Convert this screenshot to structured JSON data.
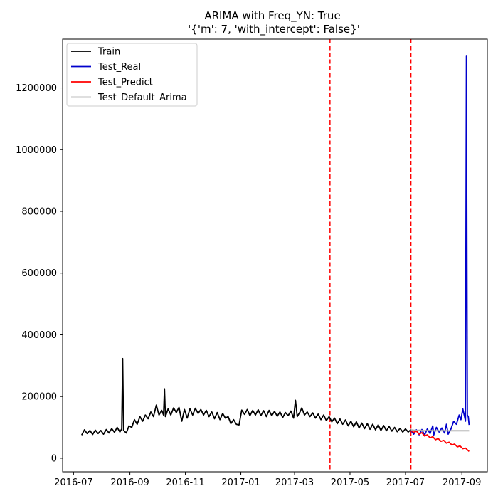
{
  "chart_data": {
    "type": "line",
    "title": "ARIMA with Freq_YN: True",
    "subtitle": "'{'m': 7, 'with_intercept': False}'",
    "xlabel": "",
    "ylabel": "",
    "xlim": [
      "2016-06-19",
      "2017-09-29"
    ],
    "ylim": [
      -44000,
      1358000
    ],
    "x_ticks": [
      "2016-07",
      "2016-09",
      "2016-11",
      "2017-01",
      "2017-03",
      "2017-05",
      "2017-07",
      "2017-09"
    ],
    "y_ticks": [
      0,
      200000,
      400000,
      600000,
      800000,
      1000000,
      1200000
    ],
    "grid": false,
    "legend": "top-left",
    "vlines": [
      {
        "x": "2017-04-09",
        "color": "#ff0000",
        "style": "dashed"
      },
      {
        "x": "2017-07-07",
        "color": "#ff0000",
        "style": "dashed"
      }
    ],
    "series": [
      {
        "name": "Train",
        "color": "#000000",
        "points": [
          [
            "2016-07-10",
            75000
          ],
          [
            "2016-07-13",
            92000
          ],
          [
            "2016-07-16",
            80000
          ],
          [
            "2016-07-19",
            90000
          ],
          [
            "2016-07-22",
            77000
          ],
          [
            "2016-07-25",
            91000
          ],
          [
            "2016-07-28",
            80000
          ],
          [
            "2016-07-31",
            90000
          ],
          [
            "2016-08-03",
            78000
          ],
          [
            "2016-08-06",
            93000
          ],
          [
            "2016-08-09",
            82000
          ],
          [
            "2016-08-12",
            96000
          ],
          [
            "2016-08-15",
            84000
          ],
          [
            "2016-08-18",
            100000
          ],
          [
            "2016-08-21",
            85000
          ],
          [
            "2016-08-23",
            95000
          ],
          [
            "2016-08-24",
            323000
          ],
          [
            "2016-08-25",
            90000
          ],
          [
            "2016-08-28",
            82000
          ],
          [
            "2016-08-31",
            105000
          ],
          [
            "2016-09-03",
            100000
          ],
          [
            "2016-09-06",
            125000
          ],
          [
            "2016-09-09",
            110000
          ],
          [
            "2016-09-12",
            135000
          ],
          [
            "2016-09-15",
            120000
          ],
          [
            "2016-09-18",
            140000
          ],
          [
            "2016-09-21",
            128000
          ],
          [
            "2016-09-24",
            150000
          ],
          [
            "2016-09-27",
            135000
          ],
          [
            "2016-09-30",
            172000
          ],
          [
            "2016-10-03",
            140000
          ],
          [
            "2016-10-06",
            155000
          ],
          [
            "2016-10-08",
            140000
          ],
          [
            "2016-10-09",
            225000
          ],
          [
            "2016-10-10",
            135000
          ],
          [
            "2016-10-13",
            160000
          ],
          [
            "2016-10-16",
            140000
          ],
          [
            "2016-10-19",
            163000
          ],
          [
            "2016-10-22",
            148000
          ],
          [
            "2016-10-25",
            165000
          ],
          [
            "2016-10-28",
            120000
          ],
          [
            "2016-10-31",
            158000
          ],
          [
            "2016-11-03",
            130000
          ],
          [
            "2016-11-06",
            160000
          ],
          [
            "2016-11-09",
            140000
          ],
          [
            "2016-11-12",
            162000
          ],
          [
            "2016-11-15",
            145000
          ],
          [
            "2016-11-18",
            158000
          ],
          [
            "2016-11-21",
            140000
          ],
          [
            "2016-11-24",
            155000
          ],
          [
            "2016-11-27",
            135000
          ],
          [
            "2016-11-30",
            150000
          ],
          [
            "2016-12-03",
            128000
          ],
          [
            "2016-12-06",
            148000
          ],
          [
            "2016-12-09",
            125000
          ],
          [
            "2016-12-12",
            145000
          ],
          [
            "2016-12-15",
            130000
          ],
          [
            "2016-12-18",
            135000
          ],
          [
            "2016-12-21",
            112000
          ],
          [
            "2016-12-24",
            125000
          ],
          [
            "2016-12-27",
            110000
          ],
          [
            "2016-12-30",
            108000
          ],
          [
            "2017-01-02",
            156000
          ],
          [
            "2017-01-05",
            142000
          ],
          [
            "2017-01-08",
            158000
          ],
          [
            "2017-01-11",
            138000
          ],
          [
            "2017-01-14",
            155000
          ],
          [
            "2017-01-17",
            140000
          ],
          [
            "2017-01-20",
            157000
          ],
          [
            "2017-01-23",
            138000
          ],
          [
            "2017-01-26",
            154000
          ],
          [
            "2017-01-29",
            135000
          ],
          [
            "2017-02-01",
            155000
          ],
          [
            "2017-02-04",
            138000
          ],
          [
            "2017-02-07",
            152000
          ],
          [
            "2017-02-10",
            136000
          ],
          [
            "2017-02-13",
            150000
          ],
          [
            "2017-02-16",
            132000
          ],
          [
            "2017-02-19",
            148000
          ],
          [
            "2017-02-22",
            138000
          ],
          [
            "2017-02-25",
            153000
          ],
          [
            "2017-02-28",
            130000
          ],
          [
            "2017-03-02",
            188000
          ],
          [
            "2017-03-04",
            135000
          ],
          [
            "2017-03-07",
            150000
          ],
          [
            "2017-03-09",
            163000
          ],
          [
            "2017-03-12",
            140000
          ],
          [
            "2017-03-15",
            150000
          ],
          [
            "2017-03-18",
            135000
          ],
          [
            "2017-03-21",
            147000
          ],
          [
            "2017-03-24",
            130000
          ],
          [
            "2017-03-27",
            143000
          ],
          [
            "2017-03-30",
            125000
          ],
          [
            "2017-04-02",
            140000
          ],
          [
            "2017-04-05",
            122000
          ],
          [
            "2017-04-08",
            135000
          ],
          [
            "2017-04-11",
            118000
          ],
          [
            "2017-04-14",
            130000
          ],
          [
            "2017-04-17",
            112000
          ],
          [
            "2017-04-20",
            127000
          ],
          [
            "2017-04-23",
            110000
          ],
          [
            "2017-04-26",
            124000
          ],
          [
            "2017-04-29",
            105000
          ],
          [
            "2017-05-02",
            120000
          ],
          [
            "2017-05-05",
            102000
          ],
          [
            "2017-05-08",
            118000
          ],
          [
            "2017-05-11",
            98000
          ],
          [
            "2017-05-14",
            114000
          ],
          [
            "2017-05-17",
            96000
          ],
          [
            "2017-05-20",
            112000
          ],
          [
            "2017-05-23",
            94000
          ],
          [
            "2017-05-26",
            110000
          ],
          [
            "2017-05-29",
            92000
          ],
          [
            "2017-06-01",
            108000
          ],
          [
            "2017-06-04",
            90000
          ],
          [
            "2017-06-07",
            106000
          ],
          [
            "2017-06-10",
            89000
          ],
          [
            "2017-06-13",
            103000
          ],
          [
            "2017-06-16",
            88000
          ],
          [
            "2017-06-19",
            100000
          ],
          [
            "2017-06-22",
            86000
          ],
          [
            "2017-06-25",
            97000
          ],
          [
            "2017-06-28",
            85000
          ],
          [
            "2017-07-01",
            95000
          ],
          [
            "2017-07-04",
            85000
          ],
          [
            "2017-07-07",
            93000
          ]
        ]
      },
      {
        "name": "Test_Real",
        "color": "#0000cc",
        "points": [
          [
            "2017-07-07",
            90000
          ],
          [
            "2017-07-10",
            78000
          ],
          [
            "2017-07-13",
            92000
          ],
          [
            "2017-07-16",
            76000
          ],
          [
            "2017-07-19",
            93000
          ],
          [
            "2017-07-22",
            75000
          ],
          [
            "2017-07-25",
            95000
          ],
          [
            "2017-07-28",
            80000
          ],
          [
            "2017-07-31",
            105000
          ],
          [
            "2017-08-01",
            75000
          ],
          [
            "2017-08-04",
            100000
          ],
          [
            "2017-08-07",
            85000
          ],
          [
            "2017-08-10",
            98000
          ],
          [
            "2017-08-13",
            82000
          ],
          [
            "2017-08-15",
            110000
          ],
          [
            "2017-08-17",
            78000
          ],
          [
            "2017-08-20",
            95000
          ],
          [
            "2017-08-23",
            120000
          ],
          [
            "2017-08-26",
            110000
          ],
          [
            "2017-08-29",
            140000
          ],
          [
            "2017-08-31",
            125000
          ],
          [
            "2017-09-02",
            160000
          ],
          [
            "2017-09-04",
            135000
          ],
          [
            "2017-09-05",
            120000
          ],
          [
            "2017-09-06",
            1305000
          ],
          [
            "2017-09-07",
            140000
          ],
          [
            "2017-09-08",
            135000
          ],
          [
            "2017-09-09",
            108000
          ]
        ]
      },
      {
        "name": "Test_Predict",
        "color": "#ff0000",
        "points": [
          [
            "2017-07-07",
            90000
          ],
          [
            "2017-07-10",
            84000
          ],
          [
            "2017-07-13",
            88000
          ],
          [
            "2017-07-16",
            78000
          ],
          [
            "2017-07-19",
            83000
          ],
          [
            "2017-07-22",
            72000
          ],
          [
            "2017-07-25",
            76000
          ],
          [
            "2017-07-28",
            66000
          ],
          [
            "2017-07-31",
            70000
          ],
          [
            "2017-08-03",
            60000
          ],
          [
            "2017-08-06",
            64000
          ],
          [
            "2017-08-09",
            55000
          ],
          [
            "2017-08-12",
            58000
          ],
          [
            "2017-08-15",
            49000
          ],
          [
            "2017-08-18",
            52000
          ],
          [
            "2017-08-21",
            43000
          ],
          [
            "2017-08-24",
            46000
          ],
          [
            "2017-08-27",
            37000
          ],
          [
            "2017-08-30",
            40000
          ],
          [
            "2017-09-02",
            31000
          ],
          [
            "2017-09-05",
            33000
          ],
          [
            "2017-09-09",
            22000
          ]
        ]
      },
      {
        "name": "Test_Default_Arima",
        "color": "#aaaaaa",
        "points": [
          [
            "2017-07-07",
            92000
          ],
          [
            "2017-07-12",
            90000
          ],
          [
            "2017-07-17",
            91000
          ],
          [
            "2017-07-22",
            89000
          ],
          [
            "2017-07-27",
            90000
          ],
          [
            "2017-08-01",
            89000
          ],
          [
            "2017-08-08",
            89000
          ],
          [
            "2017-08-15",
            89000
          ],
          [
            "2017-08-22",
            89000
          ],
          [
            "2017-08-29",
            89000
          ],
          [
            "2017-09-09",
            89000
          ]
        ]
      }
    ]
  }
}
